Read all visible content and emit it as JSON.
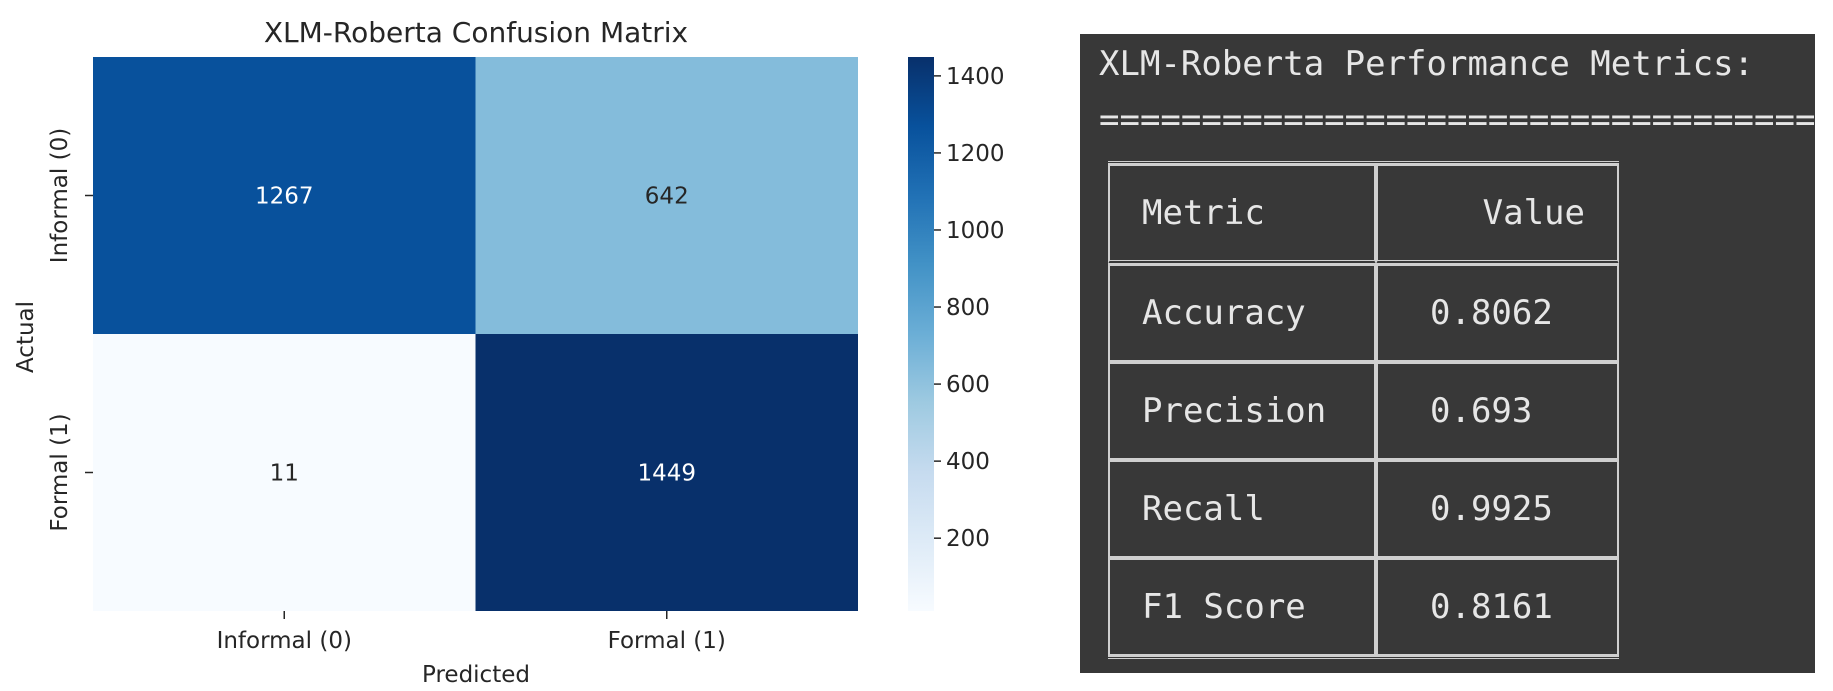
{
  "chart_data": {
    "type": "heatmap",
    "title": "XLM-Roberta Confusion Matrix",
    "xlabel": "Predicted",
    "ylabel": "Actual",
    "x_categories": [
      "Informal (0)",
      "Formal (1)"
    ],
    "y_categories": [
      "Informal (0)",
      "Formal (1)"
    ],
    "values": [
      [
        1267,
        642
      ],
      [
        11,
        1449
      ]
    ],
    "colormap": "Blues",
    "colorbar": {
      "ticks": [
        200,
        400,
        600,
        800,
        1000,
        1200,
        1400
      ],
      "range": [
        11,
        1449
      ]
    },
    "colors": {
      "dark": "#08306b",
      "deep": "#08519c",
      "mid": "#82bbdb",
      "light": "#f7fbff"
    }
  },
  "metrics_panel": {
    "title": "XLM-Roberta Performance Metrics:",
    "divider": "===================================",
    "headers": [
      "Metric",
      "Value"
    ],
    "rows": [
      {
        "metric": "Accuracy",
        "value": "0.8062"
      },
      {
        "metric": "Precision",
        "value": "0.693"
      },
      {
        "metric": "Recall",
        "value": "0.9925"
      },
      {
        "metric": "F1 Score",
        "value": "0.8161"
      }
    ],
    "colors": {
      "background": "#383838",
      "text": "#e6e6e6"
    }
  }
}
